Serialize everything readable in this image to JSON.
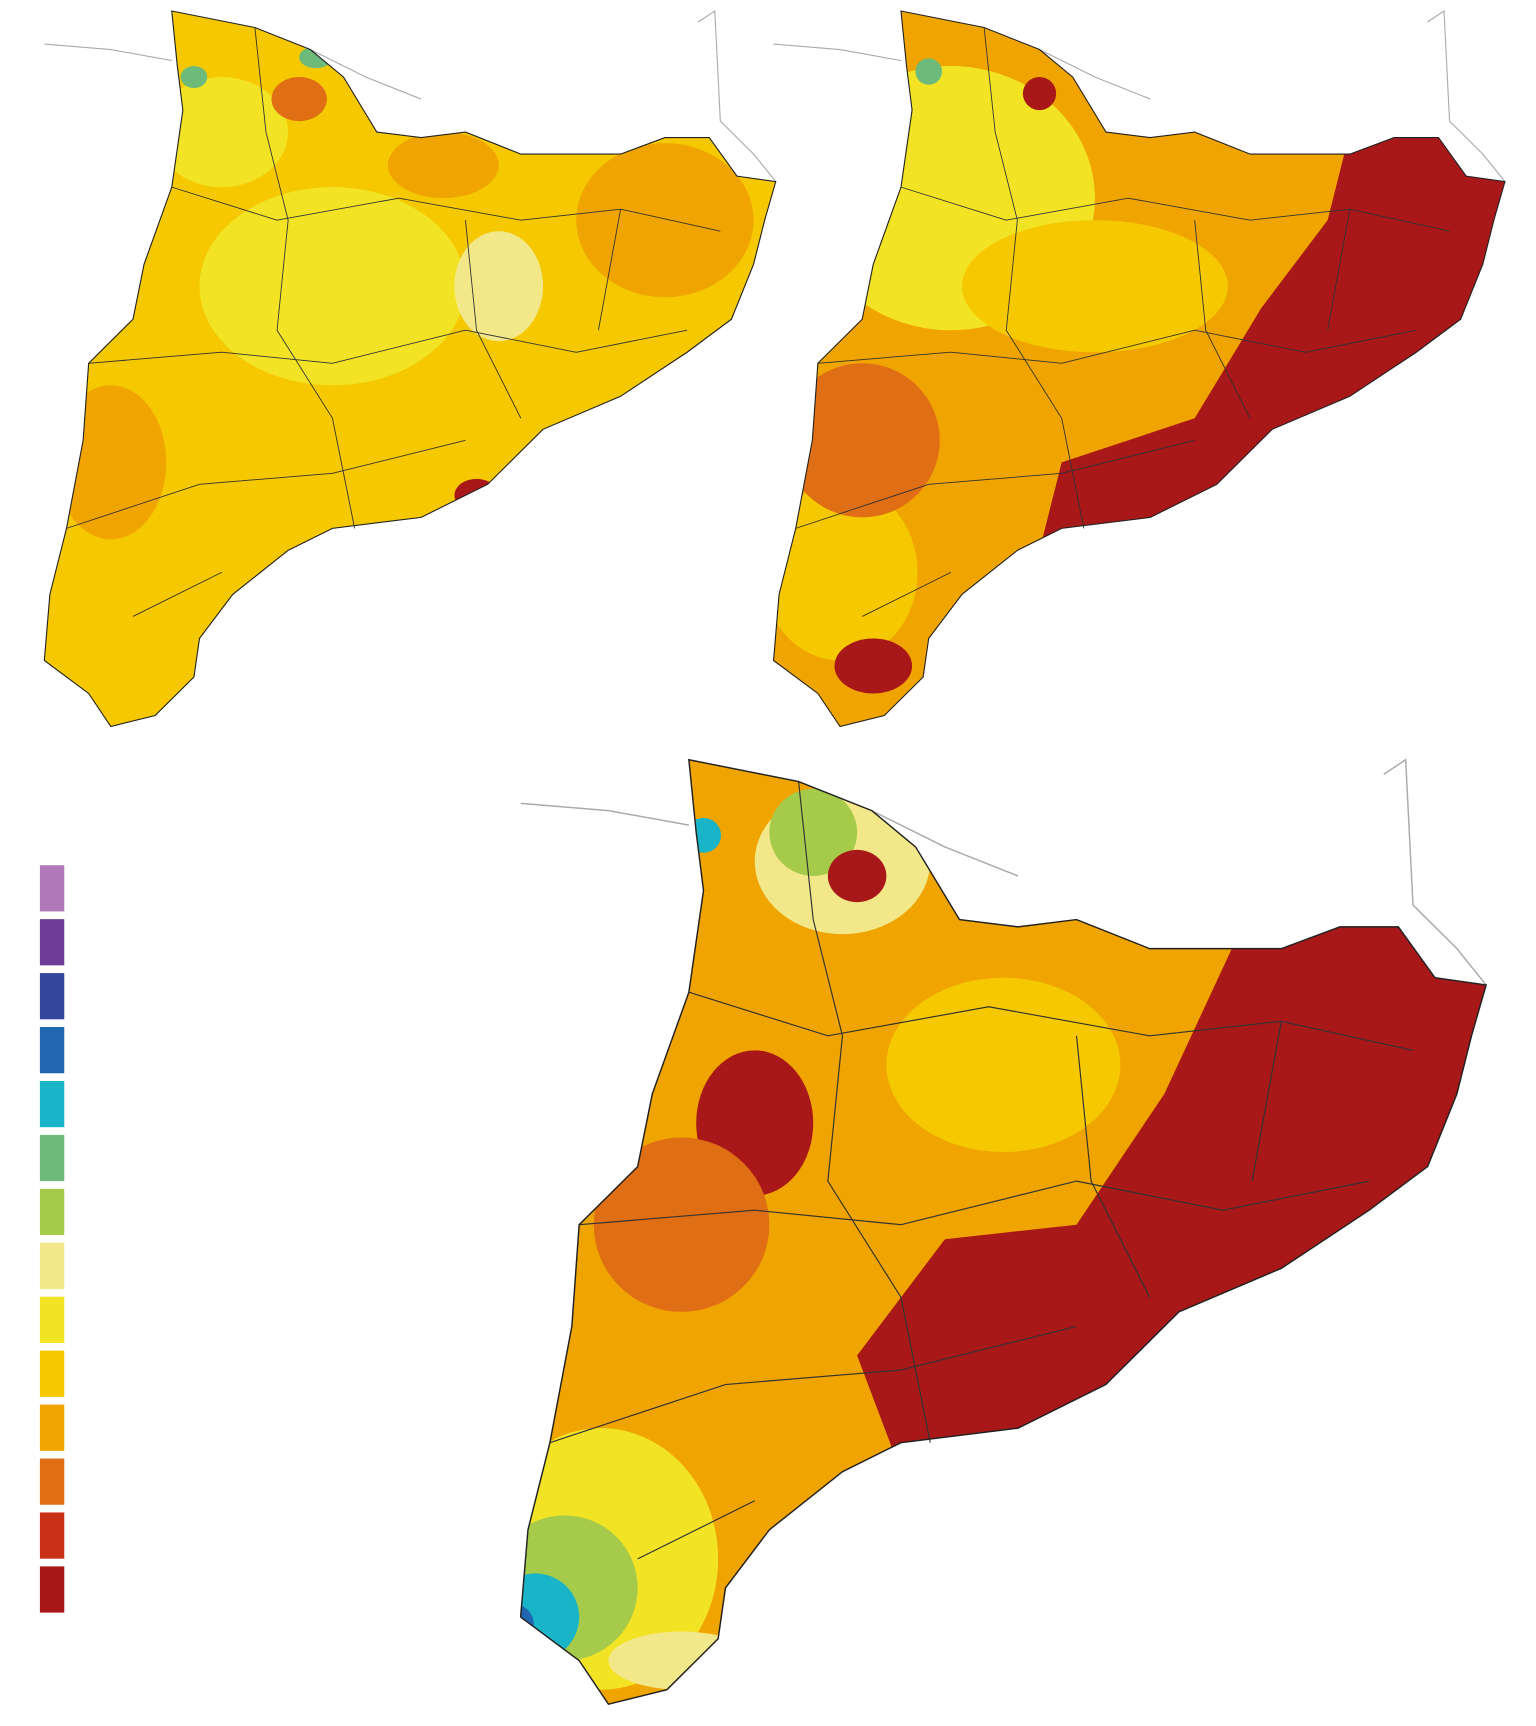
{
  "legend": {
    "colors": [
      "#b07ab8",
      "#6e3d98",
      "#34479a",
      "#2166b0",
      "#1ab4c8",
      "#6dba7a",
      "#a6cb4a",
      "#f2e88a",
      "#f2e424",
      "#f5c800",
      "#f0a400",
      "#e06e14",
      "#c83018",
      "#a81818"
    ]
  }
}
